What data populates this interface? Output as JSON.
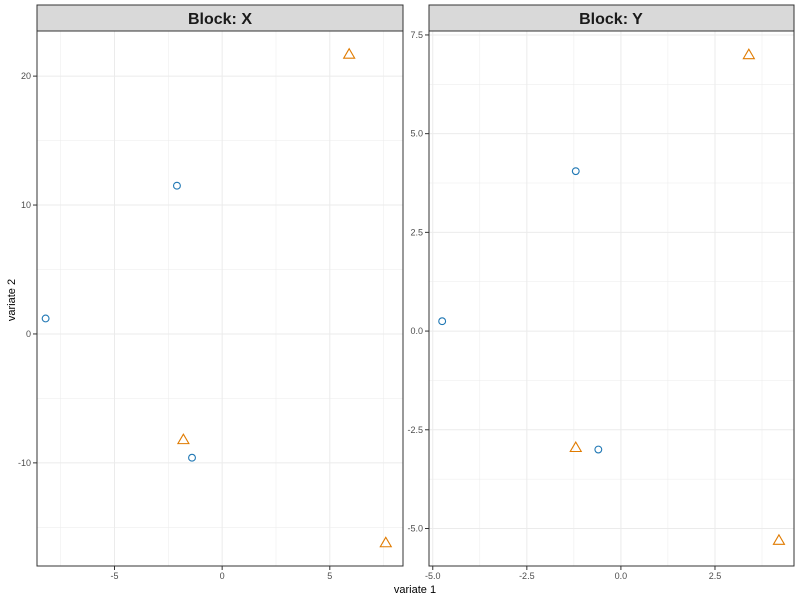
{
  "chart_data": {
    "type": "scatter",
    "xlabel": "variate 1",
    "ylabel": "variate 2",
    "grid": true,
    "legend": "none",
    "colors": {
      "circle": "#1f77b4",
      "triangle": "#e07b00",
      "strip_bg": "#d9d9d9",
      "grid": "#ebebeb",
      "panel_border": "#333333"
    },
    "panels": [
      {
        "title": "Block: X",
        "xlim": [
          -8.6,
          8.4
        ],
        "ylim": [
          -18.0,
          23.5
        ],
        "xticks": [
          -5,
          0,
          5
        ],
        "xtick_labels": [
          "-5",
          "0",
          "5"
        ],
        "yticks": [
          -10,
          0,
          10,
          20
        ],
        "ytick_labels": [
          "-10",
          "0",
          "10",
          "20"
        ],
        "points": [
          {
            "x": -8.2,
            "y": 1.2,
            "shape": "circle"
          },
          {
            "x": -2.1,
            "y": 11.5,
            "shape": "circle"
          },
          {
            "x": -1.4,
            "y": -9.6,
            "shape": "circle"
          },
          {
            "x": 5.9,
            "y": 21.7,
            "shape": "triangle"
          },
          {
            "x": -1.8,
            "y": -8.2,
            "shape": "triangle"
          },
          {
            "x": 7.6,
            "y": -16.2,
            "shape": "triangle"
          }
        ]
      },
      {
        "title": "Block: Y",
        "xlim": [
          -5.1,
          4.6
        ],
        "ylim": [
          -5.95,
          7.6
        ],
        "xticks": [
          -5.0,
          -2.5,
          0.0,
          2.5
        ],
        "xtick_labels": [
          "-5.0",
          "-2.5",
          "0.0",
          "2.5"
        ],
        "yticks": [
          -5.0,
          -2.5,
          0.0,
          2.5,
          5.0,
          7.5
        ],
        "ytick_labels": [
          "-5.0",
          "-2.5",
          "0.0",
          "2.5",
          "5.0",
          "7.5"
        ],
        "points": [
          {
            "x": -4.75,
            "y": 0.25,
            "shape": "circle"
          },
          {
            "x": -1.2,
            "y": 4.05,
            "shape": "circle"
          },
          {
            "x": -0.6,
            "y": -3.0,
            "shape": "circle"
          },
          {
            "x": 3.4,
            "y": 7.0,
            "shape": "triangle"
          },
          {
            "x": -1.2,
            "y": -2.95,
            "shape": "triangle"
          },
          {
            "x": 4.2,
            "y": -5.3,
            "shape": "triangle"
          }
        ]
      }
    ]
  }
}
